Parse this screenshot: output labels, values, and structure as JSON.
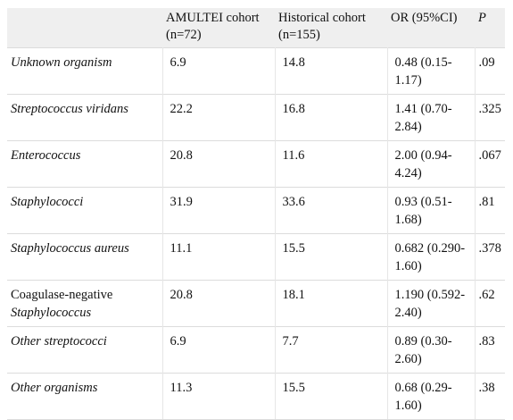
{
  "headers": {
    "col1": "",
    "col2": "AMULTEI cohort (n=72)",
    "col3": "Historical cohort (n=155)",
    "col4": "OR (95%CI)",
    "col5": "P"
  },
  "rows": [
    {
      "organism": "Unknown organism",
      "organism_prefix": "",
      "organism_italic": "Unknown organism",
      "amultei": "6.9",
      "historical": "14.8",
      "or": "0.48 (0.15-1.17)",
      "p": ".09"
    },
    {
      "organism": "Streptococcus viridans",
      "organism_prefix": "",
      "organism_italic": "Streptococcus viridans",
      "amultei": "22.2",
      "historical": "16.8",
      "or": "1.41 (0.70-2.84)",
      "p": ".325"
    },
    {
      "organism": "Enterococcus",
      "organism_prefix": "",
      "organism_italic": "Enterococcus",
      "amultei": "20.8",
      "historical": "11.6",
      "or": "2.00 (0.94-4.24)",
      "p": ".067"
    },
    {
      "organism": "Staphylococci",
      "organism_prefix": "",
      "organism_italic": "Staphylococci",
      "amultei": "31.9",
      "historical": "33.6",
      "or": "0.93 (0.51-1.68)",
      "p": ".81"
    },
    {
      "organism": "Staphylococcus aureus",
      "organism_prefix": "",
      "organism_italic": "Staphylococcus aureus",
      "amultei": "11.1",
      "historical": "15.5",
      "or": "0.682 (0.290-1.60)",
      "p": ".378"
    },
    {
      "organism": "Coagulase-negative Staphylococcus",
      "organism_prefix": "Coagulase-negative",
      "organism_italic": "Staphylococcus",
      "amultei": "20.8",
      "historical": "18.1",
      "or": "1.190 (0.592-2.40)",
      "p": ".62"
    },
    {
      "organism": "Other streptococci",
      "organism_prefix": "",
      "organism_italic": "Other streptococci",
      "amultei": "6.9",
      "historical": "7.7",
      "or": "0.89 (0.30-2.60)",
      "p": ".83"
    },
    {
      "organism": "Other organisms",
      "organism_prefix": "",
      "organism_italic": "Other organisms",
      "amultei": "11.3",
      "historical": "15.5",
      "or": "0.68 (0.29-1.60)",
      "p": ".38"
    }
  ]
}
